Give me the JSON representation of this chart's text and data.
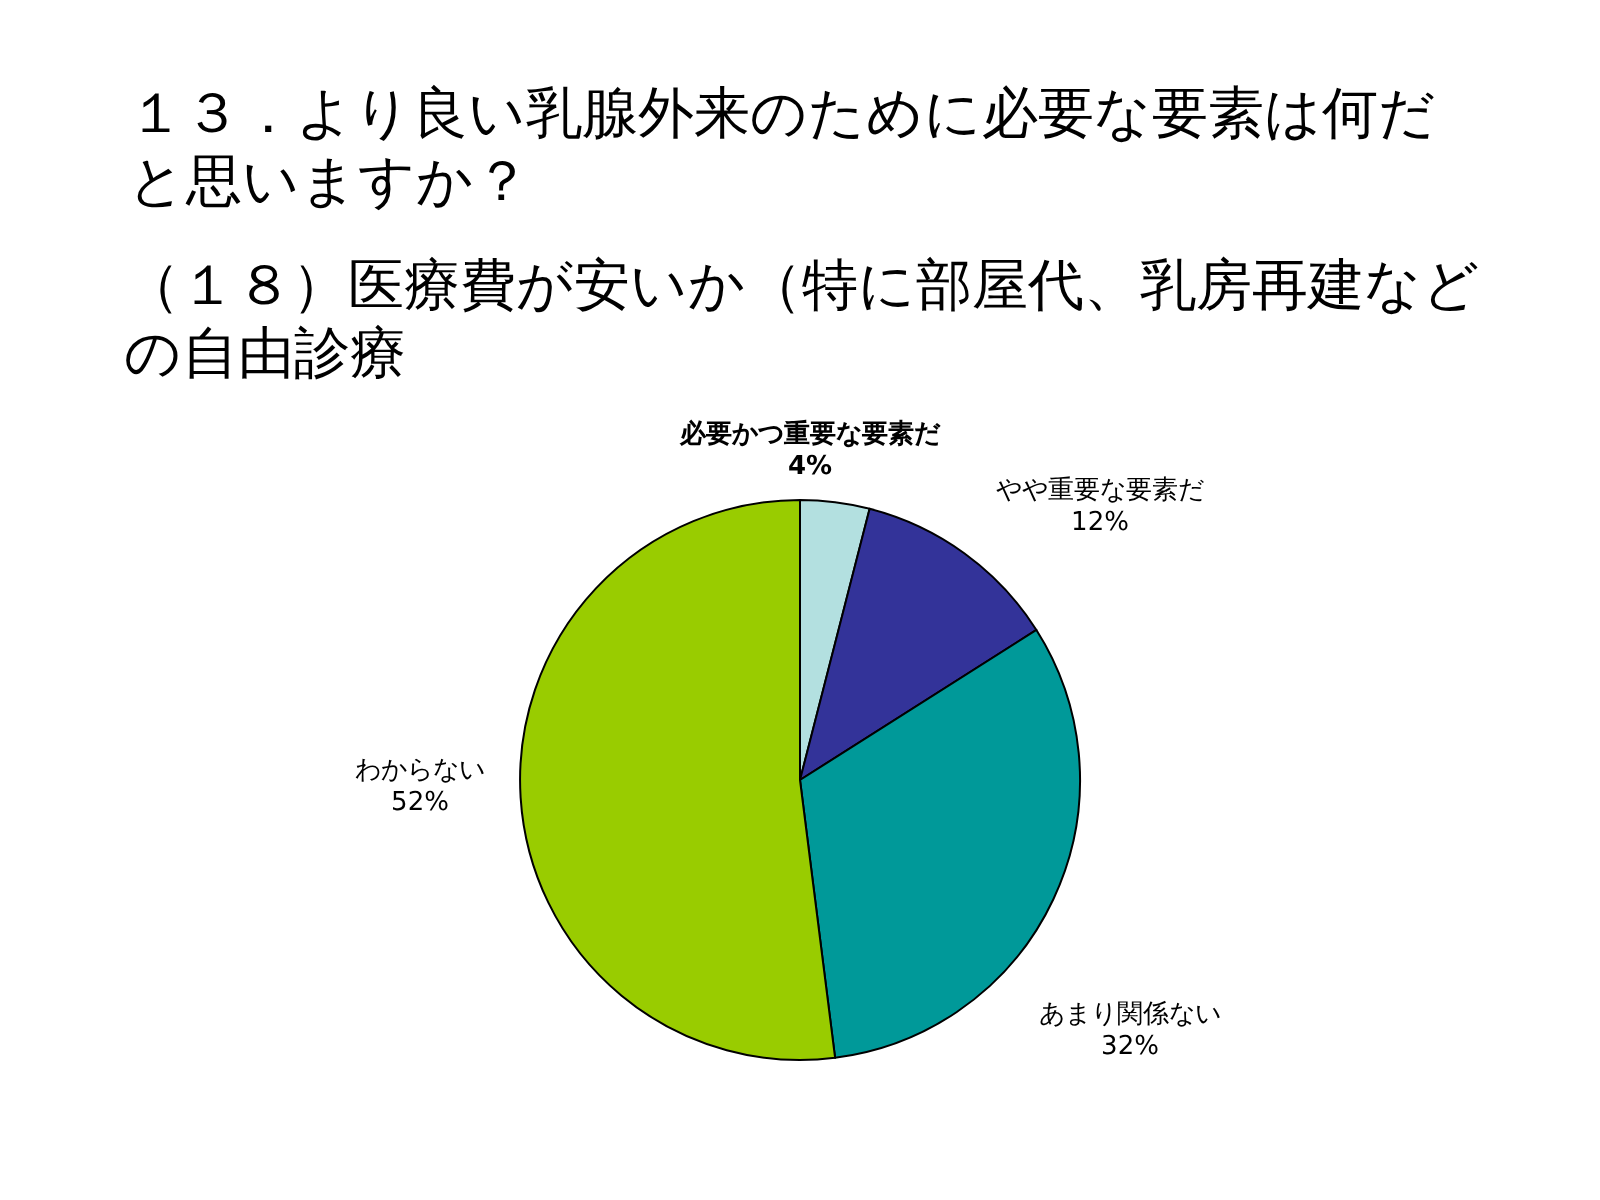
{
  "chart_data": {
    "type": "pie",
    "title": "１３．より良い乳腺外来のために必要な要素は何だと思いますか？",
    "subtitle": "（１８）医療費が安いか（特に部屋代、乳房再建などの自由診療",
    "categories": [
      "必要かつ重要な要素だ",
      "やや重要な要素だ",
      "あまり関係ない",
      "わからない"
    ],
    "values": [
      4,
      12,
      32,
      52
    ],
    "value_labels": [
      "4%",
      "12%",
      "32%",
      "52%"
    ],
    "colors": [
      "#b3e0e0",
      "#333399",
      "#009999",
      "#99cc00"
    ]
  }
}
